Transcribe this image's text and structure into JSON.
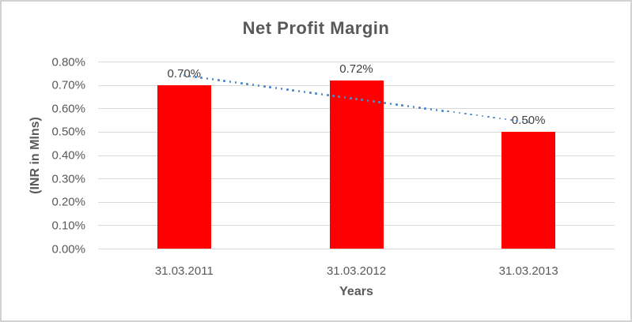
{
  "chart_data": {
    "type": "bar",
    "title": "Net Profit Margin",
    "xlabel": "Years",
    "ylabel": "(INR in Mlns)",
    "categories": [
      "31.03.2011",
      "31.03.2012",
      "31.03.2013"
    ],
    "values": [
      0.7,
      0.72,
      0.5
    ],
    "data_labels": [
      "0.70%",
      "0.72%",
      "0.50%"
    ],
    "ylim": [
      0,
      0.8
    ],
    "ytick_step": 0.1,
    "ytick_labels": [
      "0.00%",
      "0.10%",
      "0.20%",
      "0.30%",
      "0.40%",
      "0.50%",
      "0.60%",
      "0.70%",
      "0.80%"
    ],
    "grid": true,
    "legend": "none",
    "bar_color": "#ff0000",
    "gridline_color": "#d9d9d9",
    "text_color": "#595959",
    "data_label_color": "#404040",
    "trendline": {
      "type": "linear",
      "style": "round-dot",
      "color": "#4e8aca",
      "start_value": 0.74,
      "end_value": 0.54
    }
  }
}
